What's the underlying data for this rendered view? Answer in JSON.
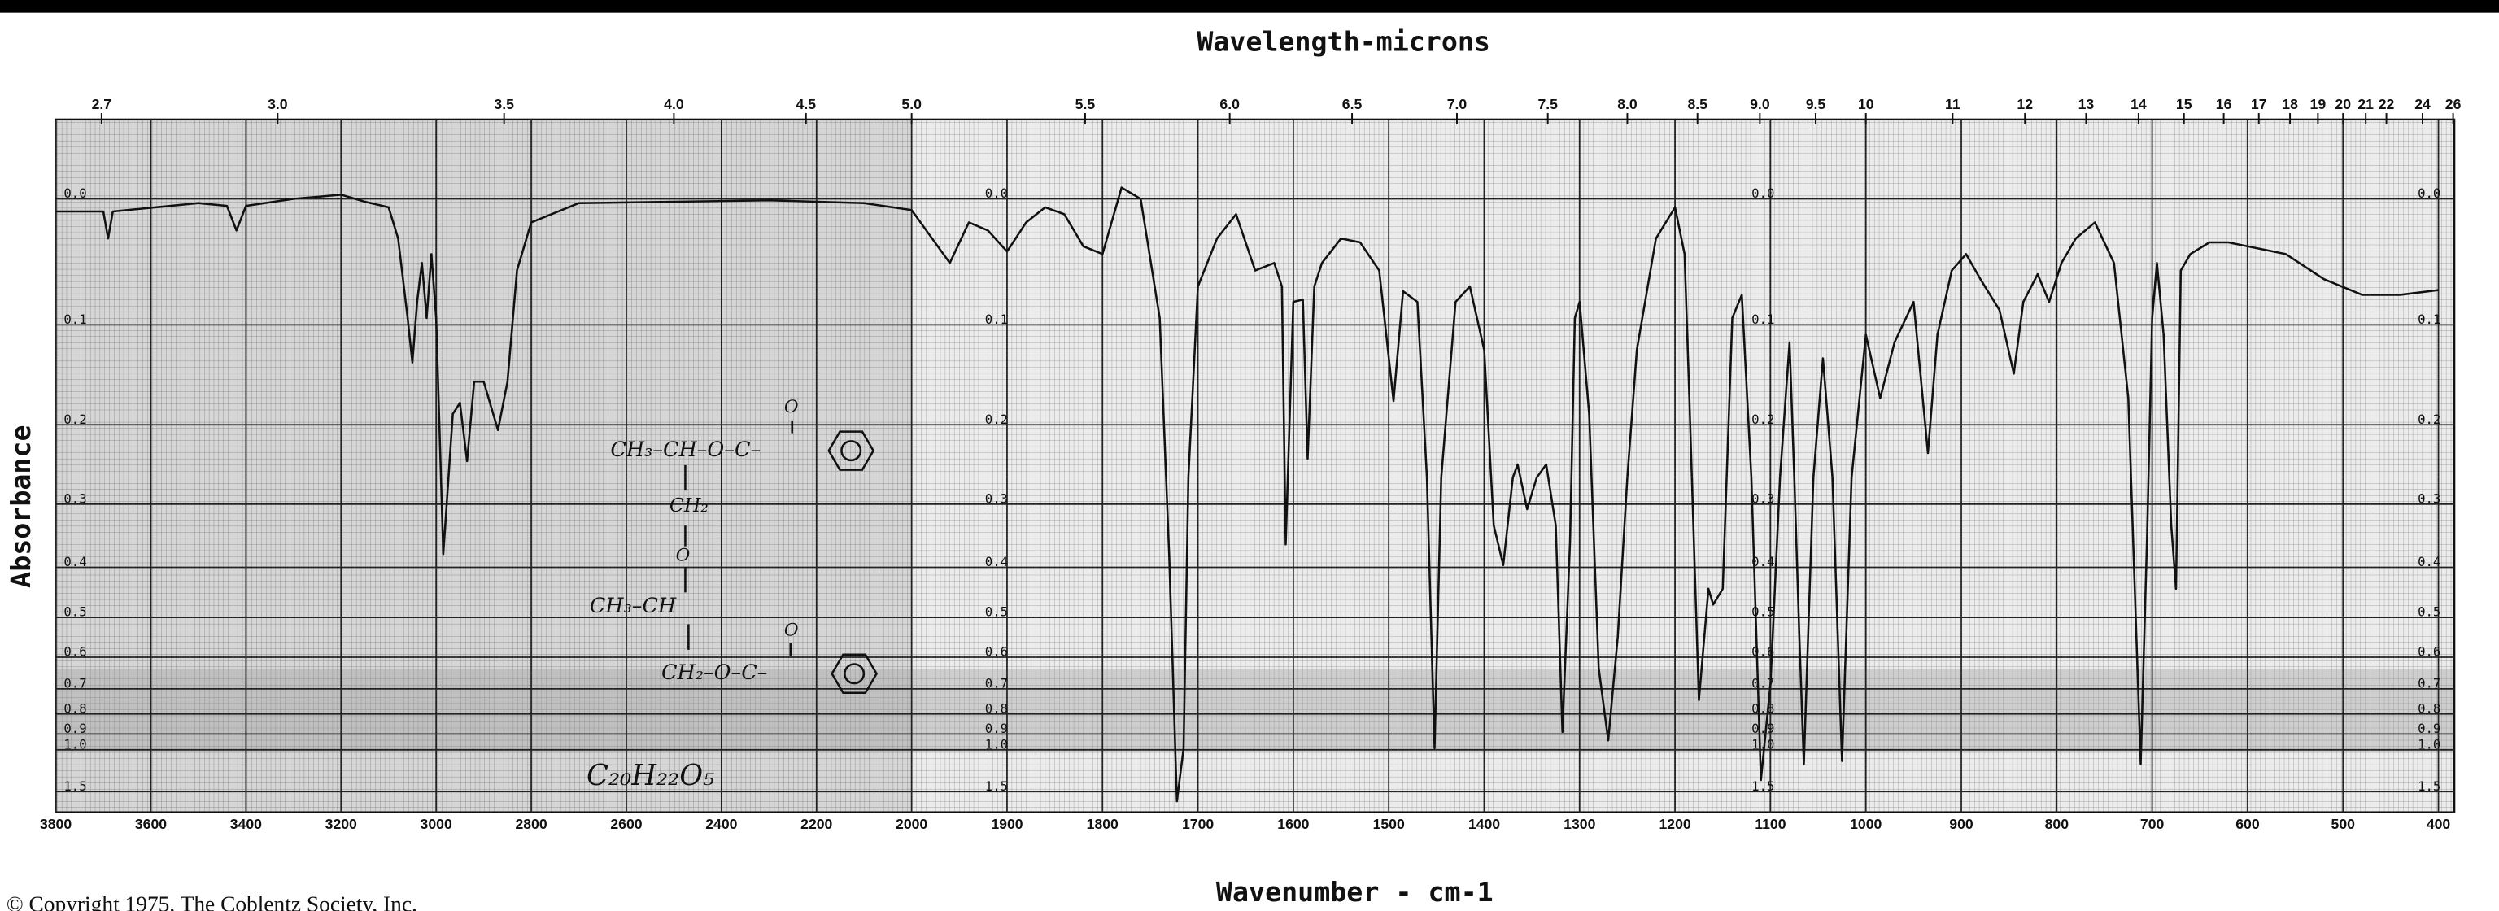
{
  "chart_data": {
    "type": "line",
    "title": "Wavelength-microns",
    "x_label": "Wavenumber - cm-1",
    "y_label": "Absorbance",
    "copyright": "© Copyright 1975, The Coblentz Society, Inc.",
    "annotations": [
      "CH₃–CH–O–C–",
      "O",
      "CH₂",
      "O",
      "CH₃–CH",
      "CH₂–O–C–",
      "O",
      "C₂₀H₂₂O₅"
    ],
    "color": "#111111",
    "grid": true,
    "xlim": [
      3800,
      400
    ],
    "xscale_change": 2000,
    "xticks": [
      3800,
      3600,
      3400,
      3200,
      3000,
      2800,
      2600,
      2400,
      2200,
      2000,
      1900,
      1800,
      1700,
      1600,
      1500,
      1400,
      1300,
      1200,
      1100,
      1000,
      900,
      800,
      700,
      600,
      500,
      400
    ],
    "top_axis_unit": "microns",
    "top_ticks": [
      2.7,
      {
        "value": 3,
        "label": "3.0"
      },
      3.5,
      {
        "value": 4,
        "label": "4.0"
      },
      4.5,
      {
        "value": 5,
        "label": "5.0"
      },
      5.5,
      {
        "value": 6,
        "label": "6.0"
      },
      6.5,
      {
        "value": 7,
        "label": "7.0"
      },
      7.5,
      {
        "value": 8,
        "label": "8.0"
      },
      8.5,
      {
        "value": 9,
        "label": "9.0"
      },
      9.5,
      10,
      11,
      12,
      13,
      14,
      15,
      16,
      17,
      18,
      19,
      20,
      21,
      22,
      24,
      26
    ],
    "yscale": "absorbance",
    "ylim": [
      -0.05,
      2.5
    ],
    "yticks": [
      {
        "value": 0,
        "label": "0.0"
      },
      0.1,
      0.2,
      0.3,
      0.4,
      0.5,
      0.6,
      0.7,
      0.8,
      0.9,
      {
        "value": 1,
        "label": "1.0"
      },
      1.5
    ],
    "x": [
      3800,
      3700,
      3690,
      3680,
      3500,
      3440,
      3420,
      3400,
      3300,
      3200,
      3150,
      3100,
      3080,
      3060,
      3050,
      3040,
      3030,
      3020,
      3010,
      3000,
      2985,
      2965,
      2950,
      2935,
      2920,
      2900,
      2880,
      2870,
      2850,
      2830,
      2800,
      2700,
      2500,
      2300,
      2100,
      2000,
      1960,
      1940,
      1920,
      1900,
      1880,
      1860,
      1840,
      1820,
      1800,
      1780,
      1760,
      1740,
      1730,
      1722,
      1715,
      1710,
      1700,
      1680,
      1660,
      1640,
      1620,
      1612,
      1608,
      1600,
      1590,
      1585,
      1578,
      1570,
      1550,
      1530,
      1510,
      1495,
      1485,
      1470,
      1460,
      1452,
      1445,
      1430,
      1415,
      1400,
      1390,
      1380,
      1370,
      1365,
      1355,
      1345,
      1335,
      1325,
      1318,
      1310,
      1305,
      1300,
      1290,
      1280,
      1270,
      1260,
      1250,
      1240,
      1220,
      1200,
      1190,
      1185,
      1175,
      1165,
      1160,
      1150,
      1140,
      1130,
      1120,
      1110,
      1100,
      1090,
      1080,
      1075,
      1070,
      1065,
      1055,
      1045,
      1035,
      1025,
      1015,
      1000,
      985,
      970,
      950,
      935,
      925,
      910,
      895,
      880,
      860,
      845,
      835,
      820,
      808,
      795,
      780,
      760,
      740,
      725,
      712,
      705,
      700,
      695,
      688,
      680,
      675,
      670,
      660,
      640,
      620,
      600,
      560,
      520,
      480,
      440,
      400
    ],
    "values": [
      0.009,
      0.009,
      0.029,
      0.009,
      0.003,
      0.005,
      0.023,
      0.005,
      0,
      -0.003,
      0.002,
      0.006,
      0.029,
      0.094,
      0.135,
      0.08,
      0.048,
      0.094,
      0.041,
      0.094,
      0.377,
      0.188,
      0.176,
      0.243,
      0.154,
      0.154,
      0.188,
      0.206,
      0.154,
      0.054,
      0.017,
      0.003,
      0.002,
      0.001,
      0.003,
      0.008,
      0.048,
      0.017,
      0.023,
      0.039,
      0.017,
      0.006,
      0.011,
      0.035,
      0.041,
      -0.008,
      0,
      0.094,
      0.382,
      1.8,
      0.989,
      0.264,
      0.067,
      0.029,
      0.011,
      0.054,
      0.048,
      0.067,
      0.361,
      0.08,
      0.078,
      0.24,
      0.067,
      0.048,
      0.029,
      0.032,
      0.054,
      0.174,
      0.071,
      0.08,
      0.264,
      0.989,
      0.264,
      0.08,
      0.067,
      0.123,
      0.331,
      0.396,
      0.264,
      0.247,
      0.307,
      0.264,
      0.247,
      0.331,
      0.889,
      0.356,
      0.094,
      0.08,
      0.188,
      0.632,
      0.938,
      0.545,
      0.264,
      0.123,
      0.029,
      0.006,
      0.041,
      0.171,
      0.742,
      0.44,
      0.472,
      0.44,
      0.094,
      0.074,
      0.264,
      1.297,
      0.684,
      0.264,
      0.116,
      0.264,
      0.526,
      1.116,
      0.264,
      0.131,
      0.264,
      1.088,
      0.264,
      0.109,
      0.171,
      0.116,
      0.08,
      0.233,
      0.109,
      0.054,
      0.041,
      0.061,
      0.087,
      0.146,
      0.08,
      0.057,
      0.08,
      0.048,
      0.029,
      0.017,
      0.048,
      0.171,
      1.116,
      0.331,
      0.094,
      0.048,
      0.109,
      0.331,
      0.44,
      0.054,
      0.041,
      0.032,
      0.032,
      0.035,
      0.041,
      0.061,
      0.074,
      0.074,
      0.07
    ]
  }
}
